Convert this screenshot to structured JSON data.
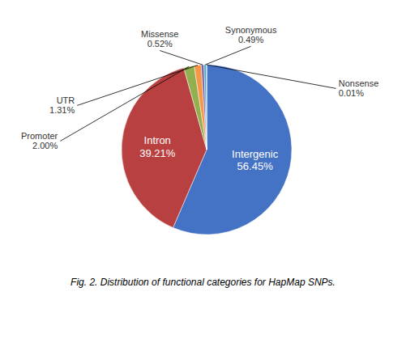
{
  "chart_data": {
    "type": "pie",
    "title": "Fig. 2. Distribution of functional categories for HapMap SNPs.",
    "categories": [
      "Intergenic",
      "Intron",
      "Promoter",
      "UTR",
      "Missense",
      "Synonymous",
      "Nonsense"
    ],
    "values": [
      56.45,
      39.21,
      2.0,
      1.31,
      0.52,
      0.49,
      0.01
    ],
    "value_labels": [
      "56.45%",
      "39.21%",
      "2.00%",
      "1.31%",
      "0.52%",
      "0.49%",
      "0.01%"
    ],
    "colors": [
      "#4472C4",
      "#B94040",
      "#92B050",
      "#F79646",
      "#7B5EA7",
      "#4BACC6",
      "#4472C4"
    ],
    "data_labels": true
  }
}
